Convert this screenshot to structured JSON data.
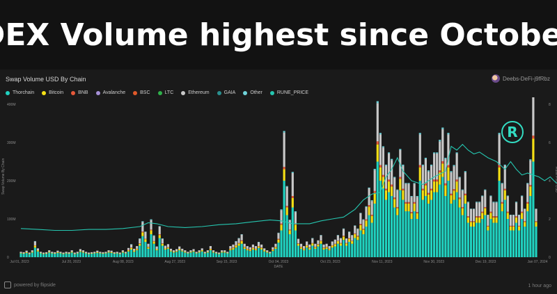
{
  "headline": "DEX Volume highest since October",
  "card": {
    "title": "Swap Volume USD By Chain",
    "owner": "Deebs-DeFi-j9fRbz",
    "footer_left": "powered by flipside",
    "footer_right": "1 hour ago"
  },
  "icons": {
    "avatar": "avatar-icon",
    "flipside": "flipside-logo-icon",
    "rune": "rune-logo-icon"
  },
  "rune_badge_letter": "R",
  "legend": [
    {
      "label": "Thorchain",
      "color": "#20d2c0"
    },
    {
      "label": "Bitcoin",
      "color": "#f5e015"
    },
    {
      "label": "BNB",
      "color": "#e6593a"
    },
    {
      "label": "Avalanche",
      "color": "#a58fd6"
    },
    {
      "label": "BSC",
      "color": "#e0592a"
    },
    {
      "label": "LTC",
      "color": "#2fb04a"
    },
    {
      "label": "Ethereum",
      "color": "#c8c8c8"
    },
    {
      "label": "GAIA",
      "color": "#2a8f8f"
    },
    {
      "label": "Other",
      "color": "#6fd3d9"
    },
    {
      "label": "RUNE_PRICE",
      "color": "#25c6b0"
    }
  ],
  "chart_data": {
    "type": "bar",
    "title": "Swap Volume USD By Chain",
    "xlabel": "DATE",
    "ylabel": "Swap Volume By Chain",
    "y2label": "Rune Price USD",
    "ylim": [
      0,
      400
    ],
    "y2lim": [
      0,
      8
    ],
    "yticks": [
      "400M",
      "300M",
      "200M",
      "100M",
      "0"
    ],
    "y2ticks": [
      "8",
      "6",
      "4",
      "2",
      "0"
    ],
    "xticks": [
      "Jul 01, 2023",
      "Jul 20, 2023",
      "Aug 08, 2023",
      "Aug 27, 2023",
      "Sep 15, 2023",
      "Oct 04, 2023",
      "Oct 23, 2023",
      "Nov 11, 2023",
      "Nov 30, 2023",
      "Dec 19, 2023",
      "Jan 07, 2024"
    ],
    "stack_order": [
      "Thorchain",
      "Bitcoin",
      "BNB",
      "Ethereum",
      "Other"
    ],
    "series": [
      {
        "name": "Thorchain",
        "values": [
          10,
          9,
          11,
          8,
          12,
          25,
          15,
          10,
          8,
          9,
          12,
          10,
          9,
          11,
          10,
          8,
          10,
          9,
          12,
          8,
          10,
          14,
          12,
          10,
          8,
          9,
          10,
          11,
          10,
          9,
          10,
          12,
          11,
          9,
          10,
          8,
          12,
          10,
          15,
          20,
          14,
          18,
          30,
          55,
          40,
          22,
          60,
          35,
          18,
          50,
          30,
          20,
          22,
          15,
          12,
          14,
          18,
          15,
          12,
          10,
          12,
          14,
          10,
          12,
          15,
          10,
          12,
          18,
          12,
          10,
          8,
          12,
          12,
          10,
          18,
          20,
          25,
          30,
          35,
          22,
          18,
          16,
          20,
          18,
          24,
          20,
          15,
          12,
          10,
          16,
          22,
          38,
          70,
          200,
          110,
          60,
          130,
          70,
          30,
          22,
          18,
          25,
          20,
          30,
          22,
          28,
          35,
          20,
          22,
          18,
          25,
          28,
          35,
          30,
          45,
          30,
          40,
          35,
          50,
          45,
          70,
          60,
          80,
          110,
          90,
          140,
          250,
          200,
          180,
          150,
          170,
          160,
          130,
          110,
          175,
          150,
          120,
          120,
          100,
          120,
          100,
          200,
          150,
          160,
          140,
          150,
          170,
          170,
          190,
          210,
          160,
          200,
          140,
          150,
          170,
          130,
          110,
          140,
          90,
          80,
          80,
          90,
          90,
          100,
          110,
          70,
          100,
          90,
          90,
          200,
          120,
          150,
          100,
          70,
          70,
          90,
          70,
          100,
          80,
          120,
          160,
          250,
          80
        ]
      },
      {
        "name": "Bitcoin",
        "values": [
          1,
          1,
          2,
          1,
          2,
          5,
          3,
          1,
          1,
          1,
          2,
          1,
          1,
          2,
          1,
          1,
          1,
          1,
          2,
          1,
          1,
          2,
          2,
          1,
          1,
          1,
          1,
          2,
          1,
          1,
          1,
          2,
          2,
          1,
          1,
          1,
          2,
          1,
          3,
          4,
          3,
          3,
          5,
          10,
          7,
          4,
          10,
          6,
          3,
          8,
          5,
          3,
          3,
          2,
          2,
          2,
          3,
          2,
          2,
          1,
          2,
          2,
          1,
          2,
          3,
          1,
          2,
          3,
          2,
          1,
          1,
          2,
          2,
          1,
          3,
          4,
          5,
          6,
          7,
          4,
          3,
          3,
          4,
          3,
          4,
          4,
          3,
          2,
          1,
          3,
          4,
          8,
          15,
          30,
          20,
          10,
          25,
          15,
          5,
          4,
          3,
          5,
          4,
          6,
          4,
          5,
          7,
          4,
          4,
          3,
          5,
          6,
          7,
          6,
          9,
          6,
          8,
          7,
          10,
          9,
          14,
          12,
          16,
          22,
          18,
          28,
          45,
          35,
          30,
          25,
          28,
          25,
          22,
          18,
          30,
          25,
          20,
          20,
          15,
          20,
          15,
          35,
          25,
          28,
          24,
          25,
          28,
          28,
          32,
          35,
          28,
          35,
          22,
          24,
          28,
          22,
          18,
          22,
          14,
          12,
          12,
          14,
          14,
          16,
          18,
          10,
          16,
          14,
          14,
          35,
          20,
          25,
          16,
          10,
          10,
          14,
          10,
          16,
          12,
          20,
          25,
          60,
          12
        ]
      },
      {
        "name": "BNB",
        "values": [
          0,
          0,
          0,
          0,
          0,
          1,
          0,
          0,
          0,
          0,
          0,
          0,
          0,
          0,
          0,
          0,
          0,
          0,
          0,
          0,
          0,
          0,
          0,
          0,
          0,
          0,
          0,
          0,
          0,
          0,
          0,
          0,
          0,
          0,
          0,
          0,
          0,
          0,
          1,
          1,
          0,
          1,
          1,
          2,
          1,
          1,
          2,
          1,
          0,
          2,
          1,
          0,
          1,
          0,
          0,
          0,
          0,
          0,
          0,
          0,
          0,
          0,
          0,
          0,
          0,
          0,
          0,
          1,
          0,
          0,
          0,
          0,
          0,
          0,
          1,
          1,
          1,
          1,
          2,
          1,
          1,
          1,
          1,
          1,
          1,
          1,
          0,
          0,
          0,
          1,
          1,
          2,
          3,
          6,
          4,
          2,
          5,
          3,
          1,
          1,
          1,
          1,
          1,
          1,
          1,
          1,
          1,
          1,
          1,
          1,
          1,
          1,
          1,
          1,
          2,
          1,
          2,
          1,
          2,
          2,
          3,
          2,
          3,
          4,
          3,
          5,
          8,
          6,
          5,
          4,
          5,
          5,
          4,
          3,
          5,
          4,
          4,
          4,
          3,
          4,
          3,
          6,
          4,
          5,
          4,
          4,
          5,
          5,
          5,
          6,
          5,
          6,
          4,
          4,
          5,
          4,
          3,
          4,
          3,
          2,
          2,
          3,
          3,
          3,
          3,
          2,
          3,
          3,
          3,
          6,
          4,
          4,
          3,
          2,
          2,
          3,
          2,
          3,
          2,
          4,
          4,
          8,
          2
        ]
      },
      {
        "name": "Ethereum",
        "values": [
          3,
          3,
          4,
          3,
          4,
          10,
          5,
          3,
          3,
          3,
          4,
          3,
          3,
          4,
          3,
          3,
          3,
          3,
          4,
          3,
          3,
          5,
          4,
          3,
          3,
          3,
          3,
          4,
          3,
          3,
          3,
          4,
          4,
          3,
          3,
          3,
          4,
          3,
          5,
          8,
          5,
          7,
          12,
          25,
          18,
          8,
          25,
          14,
          7,
          20,
          12,
          7,
          8,
          5,
          4,
          5,
          7,
          5,
          4,
          3,
          4,
          5,
          3,
          4,
          5,
          3,
          4,
          7,
          4,
          3,
          3,
          4,
          4,
          3,
          7,
          8,
          10,
          12,
          15,
          8,
          7,
          6,
          8,
          7,
          10,
          8,
          5,
          4,
          3,
          6,
          8,
          15,
          35,
          90,
          50,
          25,
          60,
          30,
          12,
          8,
          7,
          10,
          8,
          12,
          8,
          10,
          14,
          8,
          8,
          7,
          10,
          11,
          14,
          12,
          18,
          12,
          16,
          14,
          20,
          18,
          28,
          24,
          32,
          44,
          36,
          55,
          100,
          80,
          72,
          60,
          68,
          64,
          52,
          44,
          70,
          60,
          48,
          48,
          40,
          48,
          40,
          80,
          60,
          64,
          56,
          60,
          68,
          68,
          76,
          84,
          64,
          80,
          56,
          60,
          68,
          52,
          44,
          56,
          36,
          32,
          32,
          36,
          36,
          40,
          44,
          28,
          40,
          36,
          36,
          80,
          48,
          60,
          40,
          28,
          28,
          36,
          28,
          40,
          32,
          48,
          64,
          110,
          32
        ]
      },
      {
        "name": "Other",
        "values": [
          0,
          0,
          0,
          0,
          0,
          1,
          0,
          0,
          0,
          0,
          0,
          0,
          0,
          0,
          0,
          0,
          0,
          0,
          0,
          0,
          0,
          0,
          0,
          0,
          0,
          0,
          0,
          0,
          0,
          0,
          0,
          0,
          0,
          0,
          0,
          0,
          0,
          0,
          0,
          1,
          0,
          0,
          1,
          2,
          1,
          0,
          2,
          1,
          0,
          1,
          1,
          0,
          0,
          0,
          0,
          0,
          0,
          0,
          0,
          0,
          0,
          0,
          0,
          0,
          0,
          0,
          0,
          0,
          0,
          0,
          0,
          0,
          0,
          0,
          0,
          0,
          1,
          1,
          1,
          0,
          0,
          0,
          0,
          0,
          1,
          0,
          0,
          0,
          0,
          0,
          0,
          1,
          2,
          4,
          2,
          1,
          3,
          2,
          0,
          0,
          0,
          0,
          0,
          1,
          0,
          0,
          1,
          0,
          0,
          0,
          0,
          0,
          1,
          1,
          1,
          0,
          1,
          1,
          1,
          1,
          1,
          1,
          2,
          2,
          2,
          3,
          5,
          4,
          3,
          3,
          3,
          3,
          2,
          2,
          3,
          3,
          2,
          2,
          2,
          2,
          2,
          4,
          3,
          3,
          3,
          3,
          3,
          3,
          4,
          4,
          3,
          4,
          3,
          3,
          3,
          2,
          2,
          3,
          2,
          1,
          1,
          2,
          2,
          2,
          2,
          1,
          2,
          2,
          2,
          4,
          2,
          3,
          2,
          1,
          1,
          2,
          1,
          2,
          1,
          2,
          3,
          5,
          1
        ]
      }
    ],
    "rune_price": {
      "name": "RUNE_PRICE",
      "points": [
        [
          0,
          1.5
        ],
        [
          6,
          1.45
        ],
        [
          12,
          1.4
        ],
        [
          18,
          1.4
        ],
        [
          24,
          1.45
        ],
        [
          30,
          1.45
        ],
        [
          36,
          1.5
        ],
        [
          42,
          1.6
        ],
        [
          45,
          1.8
        ],
        [
          48,
          1.75
        ],
        [
          52,
          1.6
        ],
        [
          58,
          1.55
        ],
        [
          64,
          1.6
        ],
        [
          70,
          1.7
        ],
        [
          76,
          1.75
        ],
        [
          82,
          1.85
        ],
        [
          88,
          1.95
        ],
        [
          92,
          1.9
        ],
        [
          96,
          1.75
        ],
        [
          102,
          1.75
        ],
        [
          106,
          1.9
        ],
        [
          110,
          2.0
        ],
        [
          114,
          2.1
        ],
        [
          118,
          2.5
        ],
        [
          121,
          3.0
        ],
        [
          124,
          3.3
        ],
        [
          127,
          3.4
        ],
        [
          129,
          4.2
        ],
        [
          131,
          4.6
        ],
        [
          133,
          5.2
        ],
        [
          135,
          4.5
        ],
        [
          138,
          4.0
        ],
        [
          142,
          3.8
        ],
        [
          146,
          4.2
        ],
        [
          150,
          4.5
        ],
        [
          152,
          5.8
        ],
        [
          154,
          5.6
        ],
        [
          156,
          5.9
        ],
        [
          158,
          5.6
        ],
        [
          160,
          5.4
        ],
        [
          162,
          5.5
        ],
        [
          165,
          5.2
        ],
        [
          168,
          5.0
        ],
        [
          171,
          4.6
        ],
        [
          173,
          5.0
        ],
        [
          175,
          4.6
        ],
        [
          177,
          4.3
        ],
        [
          179,
          4.4
        ],
        [
          181,
          4.3
        ],
        [
          183,
          4.2
        ],
        [
          185,
          4.0
        ],
        [
          187,
          4.2
        ],
        [
          189,
          3.9
        ],
        [
          191,
          3.8
        ],
        [
          193,
          3.6
        ]
      ]
    }
  }
}
